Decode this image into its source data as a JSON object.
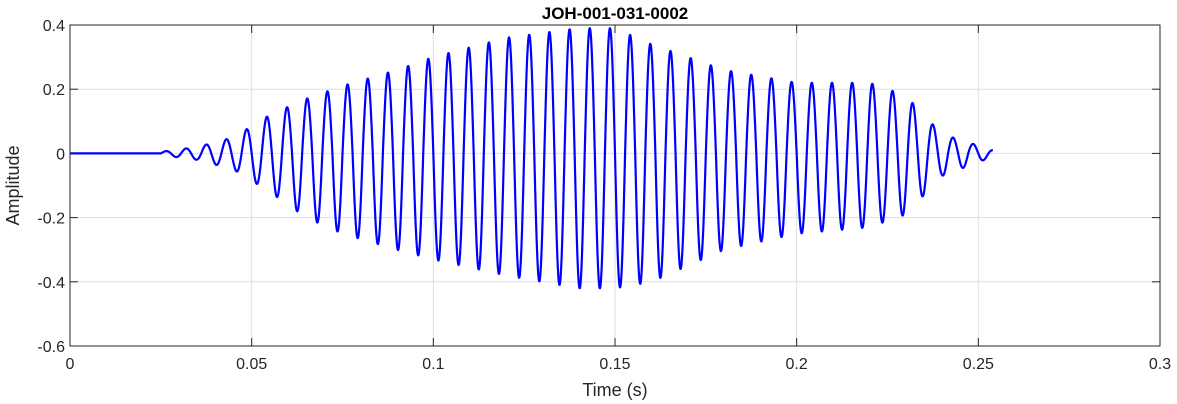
{
  "chart_data": {
    "type": "line",
    "title": "JOH-001-031-0002",
    "xlabel": "Time (s)",
    "ylabel": "Amplitude",
    "xlim": [
      0,
      0.3
    ],
    "ylim": [
      -0.6,
      0.4
    ],
    "x_ticks": [
      0,
      0.05,
      0.1,
      0.15,
      0.2,
      0.25,
      0.3
    ],
    "x_tick_labels": [
      "0",
      "0.05",
      "0.1",
      "0.15",
      "0.2",
      "0.25",
      "0.3"
    ],
    "y_ticks": [
      -0.6,
      -0.4,
      -0.2,
      0,
      0.2,
      0.4
    ],
    "y_tick_labels": [
      "-0.6",
      "-0.4",
      "-0.2",
      "0",
      "0.2",
      "0.4"
    ],
    "grid": true,
    "series": [
      {
        "color": "#0000ff",
        "signal_start": 0.025,
        "signal_end": 0.254,
        "frequency_hz": 180,
        "envelope": {
          "t": [
            0.0,
            0.025,
            0.035,
            0.045,
            0.055,
            0.065,
            0.075,
            0.09,
            0.1,
            0.12,
            0.14,
            0.15,
            0.16,
            0.18,
            0.2,
            0.22,
            0.23,
            0.24,
            0.254
          ],
          "pos": [
            0.0,
            0.005,
            0.02,
            0.05,
            0.12,
            0.17,
            0.21,
            0.26,
            0.3,
            0.36,
            0.39,
            0.39,
            0.34,
            0.26,
            0.22,
            0.22,
            0.18,
            0.06,
            0.01
          ],
          "neg": [
            0.0,
            -0.005,
            -0.02,
            -0.05,
            -0.12,
            -0.2,
            -0.25,
            -0.3,
            -0.33,
            -0.38,
            -0.42,
            -0.42,
            -0.4,
            -0.3,
            -0.25,
            -0.23,
            -0.19,
            -0.07,
            -0.01
          ]
        }
      }
    ]
  }
}
